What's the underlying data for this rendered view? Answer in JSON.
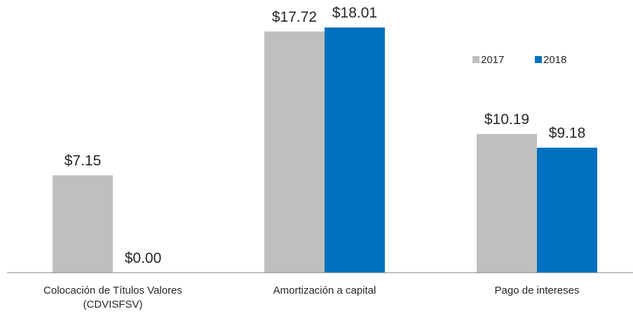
{
  "chart_data": {
    "type": "bar",
    "categories": [
      [
        "Colocación de Títulos Valores",
        "(CDVISFSV)"
      ],
      [
        "Amortización a capital"
      ],
      [
        "Pago de intereses"
      ]
    ],
    "series": [
      {
        "name": "2017",
        "color": "#bfbfbf",
        "values": [
          7.15,
          17.72,
          10.19
        ],
        "labels": [
          "$7.15",
          "$17.72",
          "$10.19"
        ]
      },
      {
        "name": "2018",
        "color": "#0070c0",
        "values": [
          0.0,
          18.01,
          9.18
        ],
        "labels": [
          "$0.00",
          "$18.01",
          "$9.18"
        ]
      }
    ],
    "ylim": [
      0,
      19
    ],
    "grid": false,
    "legend_position": "top-right",
    "axis_color": "#7f7f7f"
  }
}
